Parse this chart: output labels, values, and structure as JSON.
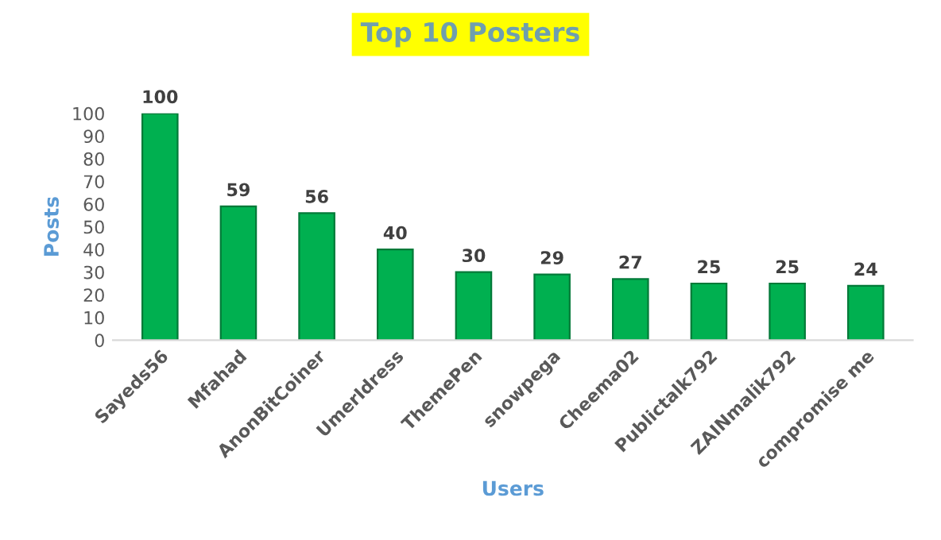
{
  "chart_data": {
    "type": "bar",
    "title": "Top 10 Posters",
    "xlabel": "Users",
    "ylabel": "Posts",
    "categories": [
      "Sayeds56",
      "Mfahad",
      "AnonBitCoiner",
      "UmerIdress",
      "ThemePen",
      "snowpega",
      "Cheema02",
      "Publictalk792",
      "ZAINmalik792",
      "compromise me"
    ],
    "values": [
      100,
      59,
      56,
      40,
      30,
      29,
      27,
      25,
      25,
      24
    ],
    "color": "#00b050",
    "ylim": [
      0,
      100
    ],
    "yticks": [
      0,
      10,
      20,
      30,
      40,
      50,
      60,
      70,
      80,
      90,
      100
    ],
    "grid": false,
    "data_labels": true
  }
}
